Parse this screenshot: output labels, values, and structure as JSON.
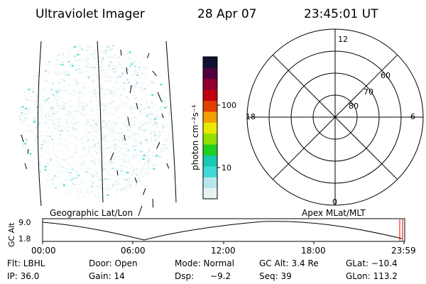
{
  "header": {
    "title": "Ultraviolet Imager",
    "date": "28 Apr 07",
    "time": "23:45:01 UT"
  },
  "image_panel": {
    "caption": "Geographic Lat/Lon"
  },
  "colorbar": {
    "unit_label": "photon cm⁻²s⁻¹",
    "tick_labels": [
      "100",
      "10"
    ],
    "colors": [
      "#e8f4f4",
      "#b4e8ec",
      "#40d8d8",
      "#18c8b0",
      "#20d020",
      "#90e000",
      "#e8e800",
      "#f0a000",
      "#e04000",
      "#c00010",
      "#900030",
      "#500040",
      "#101030"
    ]
  },
  "polar_plot": {
    "caption": "Apex MLat/MLT",
    "mlt_labels": {
      "top": "12",
      "left": "18",
      "right": "6",
      "bottom": "0"
    },
    "lat_labels": [
      "60",
      "70",
      "80"
    ]
  },
  "timeline": {
    "y_label": "GC Alt",
    "y_ticks": [
      "9.0",
      "1.8"
    ],
    "x_ticks": [
      "00:00",
      "06:00",
      "12:00",
      "18:00",
      "23:59"
    ]
  },
  "info": {
    "row1": [
      {
        "key": "flt",
        "text": "Flt:  LBHL"
      },
      {
        "key": "door",
        "text": "Door:  Open"
      },
      {
        "key": "mode",
        "text": "Mode:  Normal"
      },
      {
        "key": "gcalt",
        "text": "GC Alt:  3.4 Re"
      },
      {
        "key": "glat",
        "text": "GLat:  −10.4"
      }
    ],
    "row2": [
      {
        "key": "ip",
        "text": "IP:  36.0"
      },
      {
        "key": "gain",
        "text": "Gain:  14"
      },
      {
        "key": "dsp",
        "text": "Dsp:      −9.2"
      },
      {
        "key": "seq",
        "text": "Seq:  39"
      },
      {
        "key": "glon",
        "text": "GLon:  113.2"
      }
    ]
  }
}
